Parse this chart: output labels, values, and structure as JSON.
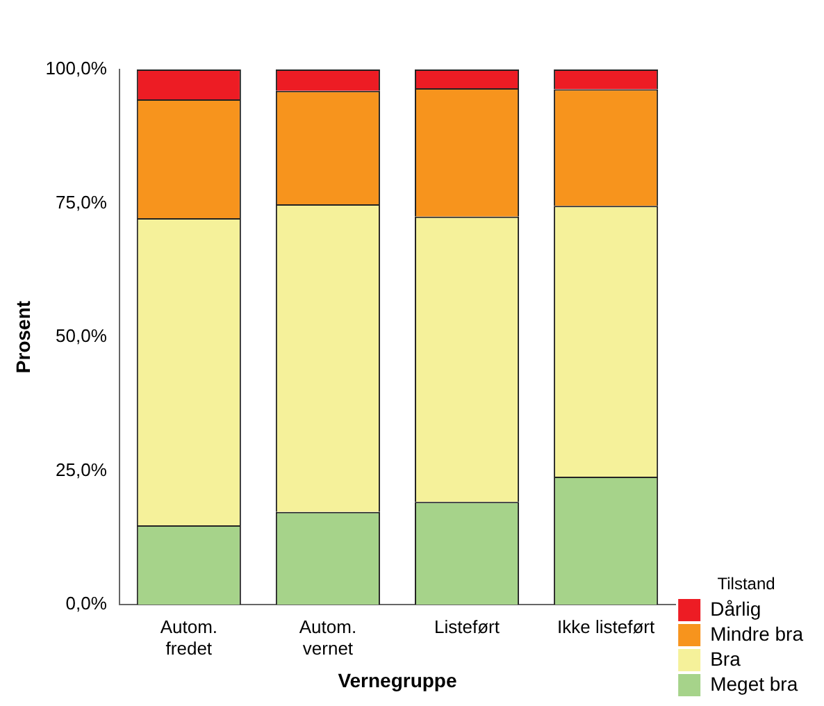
{
  "chart_data": {
    "type": "bar",
    "stacked": true,
    "xlabel": "Vernegruppe",
    "ylabel": "Prosent",
    "legend_title": "Tilstand",
    "legend": "right",
    "grid": false,
    "categories": [
      "Autom.\nfredet",
      "Autom.\nvernet",
      "Listeført",
      "Ikke listeført"
    ],
    "ylim": [
      0,
      100
    ],
    "yticks": [
      {
        "value": 0,
        "label": "0,0%"
      },
      {
        "value": 25,
        "label": "25,0%"
      },
      {
        "value": 50,
        "label": "50,0%"
      },
      {
        "value": 75,
        "label": "75,0%"
      },
      {
        "value": 100,
        "label": "100,0%"
      }
    ],
    "series": [
      {
        "name": "Meget bra",
        "color": "#a6d38a",
        "values": [
          14.8,
          17.3,
          19.2,
          23.9
        ]
      },
      {
        "name": "Bra",
        "color": "#f5f19a",
        "values": [
          57.4,
          57.5,
          53.3,
          50.6
        ]
      },
      {
        "name": "Mindre bra",
        "color": "#f7941d",
        "values": [
          22.2,
          21.2,
          24.0,
          21.8
        ]
      },
      {
        "name": "Dårlig",
        "color": "#ed1c24",
        "values": [
          5.6,
          4.0,
          3.5,
          3.7
        ]
      }
    ]
  }
}
